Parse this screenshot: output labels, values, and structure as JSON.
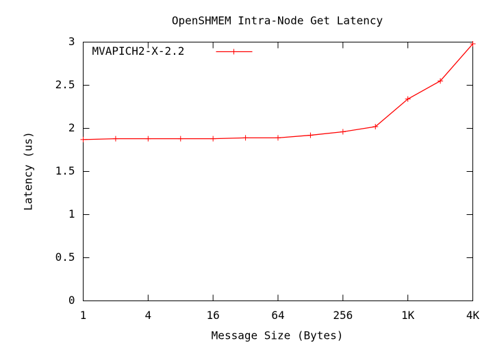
{
  "chart_data": {
    "type": "line",
    "title": "OpenSHMEM Intra-Node Get Latency",
    "x_label": "Message Size (Bytes)",
    "y_label": "Latency (us)",
    "x": [
      1,
      2,
      4,
      8,
      16,
      32,
      64,
      128,
      256,
      512,
      1024,
      2048,
      4096
    ],
    "series": [
      {
        "name": "MVAPICH2-X-2.2",
        "color": "#ff0000",
        "values": [
          1.87,
          1.88,
          1.88,
          1.88,
          1.88,
          1.89,
          1.89,
          1.92,
          1.96,
          2.02,
          2.34,
          2.55,
          2.98
        ]
      }
    ],
    "xlog": true,
    "xlim": [
      1,
      4096
    ],
    "xticks": [
      1,
      4,
      16,
      64,
      256,
      {
        "value": 1024,
        "label": "1K"
      },
      {
        "value": 4096,
        "label": "4K"
      }
    ],
    "ylim": [
      0,
      3
    ],
    "yticks": [
      0,
      0.5,
      1,
      1.5,
      2,
      2.5,
      3
    ],
    "grid": false,
    "legend": "top-left"
  }
}
